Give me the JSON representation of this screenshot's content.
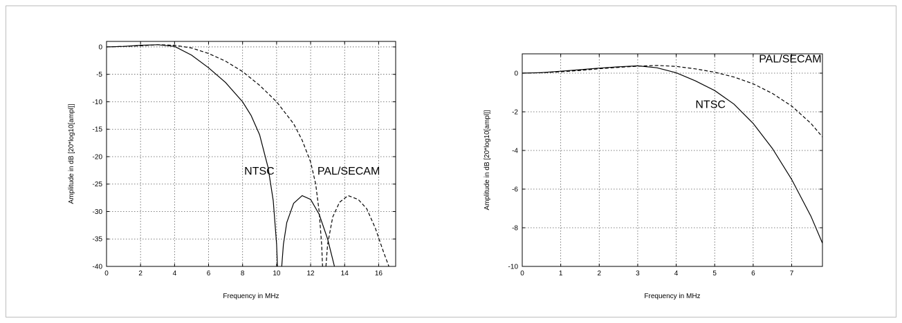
{
  "chart_data": [
    {
      "type": "line",
      "xlabel": "Frequency in MHz",
      "ylabel": "Amplitude in dB [20*log10[ampl]]",
      "xlim": [
        0,
        17
      ],
      "ylim": [
        -40,
        1
      ],
      "xticks": [
        0,
        2,
        4,
        6,
        8,
        10,
        12,
        14,
        16
      ],
      "yticks": [
        0,
        -5,
        -10,
        -15,
        -20,
        -25,
        -30,
        -35,
        -40
      ],
      "grid": true,
      "series": [
        {
          "name": "NTSC",
          "style": "solid",
          "segments": [
            [
              [
                0,
                0
              ],
              [
                1,
                0.1
              ],
              [
                2,
                0.3
              ],
              [
                3,
                0.4
              ],
              [
                4,
                0.1
              ],
              [
                5,
                -1.5
              ],
              [
                6,
                -3.8
              ],
              [
                7,
                -6.5
              ],
              [
                8,
                -10
              ],
              [
                8.5,
                -12.5
              ],
              [
                9,
                -16
              ],
              [
                9.5,
                -22
              ],
              [
                9.8,
                -28
              ],
              [
                10,
                -36
              ],
              [
                10.05,
                -40
              ]
            ],
            [
              [
                10.3,
                -40
              ],
              [
                10.4,
                -36
              ],
              [
                10.6,
                -32
              ],
              [
                11,
                -28.5
              ],
              [
                11.5,
                -27.1
              ],
              [
                12,
                -27.8
              ],
              [
                12.5,
                -30.5
              ],
              [
                13,
                -35
              ],
              [
                13.4,
                -40
              ]
            ]
          ]
        },
        {
          "name": "PAL/SECAM",
          "style": "dashed",
          "segments": [
            [
              [
                0,
                0
              ],
              [
                2,
                0.2
              ],
              [
                3,
                0.4
              ],
              [
                4,
                0.3
              ],
              [
                5,
                -0.2
              ],
              [
                6,
                -1.2
              ],
              [
                7,
                -2.6
              ],
              [
                8,
                -4.5
              ],
              [
                9,
                -7
              ],
              [
                10,
                -10
              ],
              [
                11,
                -14
              ],
              [
                11.5,
                -17
              ],
              [
                12,
                -21
              ],
              [
                12.3,
                -25
              ],
              [
                12.5,
                -30
              ],
              [
                12.65,
                -36
              ],
              [
                12.7,
                -40
              ]
            ],
            [
              [
                12.9,
                -40
              ],
              [
                13,
                -36
              ],
              [
                13.3,
                -31
              ],
              [
                13.7,
                -28.3
              ],
              [
                14.2,
                -27.1
              ],
              [
                14.8,
                -27.8
              ],
              [
                15.3,
                -29.5
              ],
              [
                15.8,
                -33
              ],
              [
                16.3,
                -37.5
              ],
              [
                16.6,
                -40
              ]
            ]
          ]
        }
      ],
      "annotations": [
        {
          "text": "NTSC",
          "x": 8.1,
          "y": -23.3
        },
        {
          "text": "PAL/SECAM",
          "x": 12.4,
          "y": -23.3
        }
      ]
    },
    {
      "type": "line",
      "xlabel": "Frequency in MHz",
      "ylabel": "Amplitude in dB [20*log10[ampl]]",
      "xlim": [
        0,
        7.8
      ],
      "ylim": [
        -10,
        1
      ],
      "xticks": [
        0,
        1,
        2,
        3,
        4,
        5,
        6,
        7
      ],
      "yticks": [
        0,
        -2,
        -4,
        -6,
        -8,
        -10
      ],
      "grid": true,
      "series": [
        {
          "name": "NTSC",
          "style": "solid",
          "segments": [
            [
              [
                0,
                0
              ],
              [
                0.5,
                0.03
              ],
              [
                1,
                0.1
              ],
              [
                1.5,
                0.18
              ],
              [
                2,
                0.26
              ],
              [
                2.5,
                0.33
              ],
              [
                3,
                0.38
              ],
              [
                3.5,
                0.28
              ],
              [
                4,
                0.02
              ],
              [
                4.5,
                -0.4
              ],
              [
                5,
                -0.9
              ],
              [
                5.5,
                -1.6
              ],
              [
                6,
                -2.6
              ],
              [
                6.5,
                -3.9
              ],
              [
                7,
                -5.5
              ],
              [
                7.5,
                -7.4
              ],
              [
                7.8,
                -8.8
              ]
            ]
          ]
        },
        {
          "name": "PAL/SECAM",
          "style": "dashed",
          "segments": [
            [
              [
                0,
                0
              ],
              [
                0.5,
                0.02
              ],
              [
                1,
                0.07
              ],
              [
                1.5,
                0.14
              ],
              [
                2,
                0.23
              ],
              [
                2.5,
                0.3
              ],
              [
                3,
                0.36
              ],
              [
                3.5,
                0.4
              ],
              [
                4,
                0.35
              ],
              [
                4.5,
                0.22
              ],
              [
                5,
                0.05
              ],
              [
                5.5,
                -0.2
              ],
              [
                6,
                -0.55
              ],
              [
                6.5,
                -1.05
              ],
              [
                7,
                -1.7
              ],
              [
                7.5,
                -2.6
              ],
              [
                7.8,
                -3.3
              ]
            ]
          ]
        }
      ],
      "annotations": [
        {
          "text": "PAL/SECAM",
          "x": 6.15,
          "y": 0.55
        },
        {
          "text": "NTSC",
          "x": 4.5,
          "y": -1.8
        }
      ]
    }
  ]
}
